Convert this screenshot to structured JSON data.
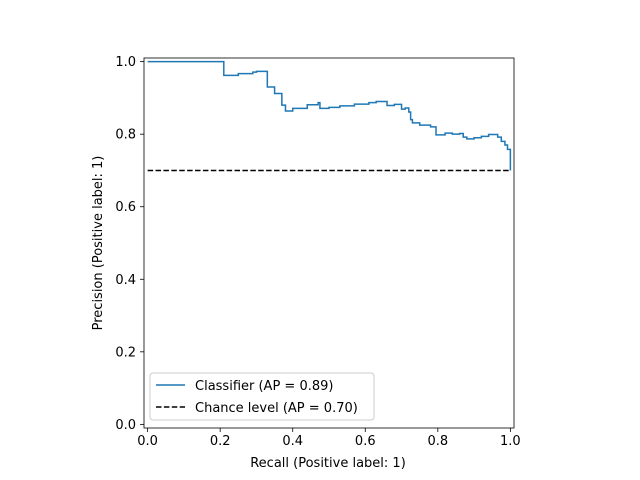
{
  "chart_data": {
    "type": "line",
    "title": "",
    "xlabel": "Recall (Positive label: 1)",
    "ylabel": "Precision (Positive label: 1)",
    "xlim": [
      -0.01,
      1.01
    ],
    "ylim": [
      -0.01,
      1.01
    ],
    "xticks": [
      "0.0",
      "0.2",
      "0.4",
      "0.6",
      "0.8",
      "1.0"
    ],
    "yticks": [
      "0.0",
      "0.2",
      "0.4",
      "0.6",
      "0.8",
      "1.0"
    ],
    "grid": false,
    "legend_position": "lower-left",
    "series": [
      {
        "name": "Classifier (AP = 0.89)",
        "color": "#1f77b4",
        "style": "step",
        "points": [
          [
            0.0,
            1.0
          ],
          [
            0.21,
            1.0
          ],
          [
            0.21,
            0.962
          ],
          [
            0.25,
            0.962
          ],
          [
            0.25,
            0.967
          ],
          [
            0.29,
            0.967
          ],
          [
            0.29,
            0.971
          ],
          [
            0.3,
            0.971
          ],
          [
            0.3,
            0.973
          ],
          [
            0.33,
            0.973
          ],
          [
            0.33,
            0.93
          ],
          [
            0.35,
            0.93
          ],
          [
            0.35,
            0.912
          ],
          [
            0.37,
            0.912
          ],
          [
            0.37,
            0.88
          ],
          [
            0.38,
            0.88
          ],
          [
            0.38,
            0.864
          ],
          [
            0.4,
            0.864
          ],
          [
            0.4,
            0.871
          ],
          [
            0.44,
            0.871
          ],
          [
            0.44,
            0.881
          ],
          [
            0.47,
            0.881
          ],
          [
            0.47,
            0.887
          ],
          [
            0.475,
            0.887
          ],
          [
            0.475,
            0.871
          ],
          [
            0.5,
            0.871
          ],
          [
            0.5,
            0.874
          ],
          [
            0.53,
            0.874
          ],
          [
            0.53,
            0.878
          ],
          [
            0.57,
            0.878
          ],
          [
            0.57,
            0.883
          ],
          [
            0.61,
            0.883
          ],
          [
            0.61,
            0.887
          ],
          [
            0.63,
            0.887
          ],
          [
            0.63,
            0.89
          ],
          [
            0.66,
            0.89
          ],
          [
            0.66,
            0.879
          ],
          [
            0.68,
            0.879
          ],
          [
            0.68,
            0.882
          ],
          [
            0.7,
            0.882
          ],
          [
            0.7,
            0.869
          ],
          [
            0.71,
            0.869
          ],
          [
            0.71,
            0.872
          ],
          [
            0.72,
            0.872
          ],
          [
            0.72,
            0.861
          ],
          [
            0.725,
            0.861
          ],
          [
            0.725,
            0.84
          ],
          [
            0.73,
            0.84
          ],
          [
            0.73,
            0.831
          ],
          [
            0.75,
            0.831
          ],
          [
            0.75,
            0.825
          ],
          [
            0.78,
            0.825
          ],
          [
            0.78,
            0.82
          ],
          [
            0.795,
            0.82
          ],
          [
            0.795,
            0.798
          ],
          [
            0.82,
            0.798
          ],
          [
            0.82,
            0.803
          ],
          [
            0.84,
            0.803
          ],
          [
            0.84,
            0.8
          ],
          [
            0.86,
            0.8
          ],
          [
            0.86,
            0.802
          ],
          [
            0.87,
            0.802
          ],
          [
            0.87,
            0.792
          ],
          [
            0.88,
            0.792
          ],
          [
            0.88,
            0.787
          ],
          [
            0.9,
            0.787
          ],
          [
            0.9,
            0.79
          ],
          [
            0.92,
            0.79
          ],
          [
            0.92,
            0.794
          ],
          [
            0.94,
            0.794
          ],
          [
            0.94,
            0.799
          ],
          [
            0.965,
            0.799
          ],
          [
            0.965,
            0.792
          ],
          [
            0.975,
            0.792
          ],
          [
            0.975,
            0.78
          ],
          [
            0.985,
            0.78
          ],
          [
            0.985,
            0.77
          ],
          [
            0.992,
            0.77
          ],
          [
            0.992,
            0.758
          ],
          [
            1.0,
            0.758
          ],
          [
            1.0,
            0.7
          ]
        ]
      },
      {
        "name": "Chance level (AP = 0.70)",
        "color": "#000000",
        "style": "dashed",
        "points": [
          [
            0.0,
            0.7
          ],
          [
            1.0,
            0.7
          ]
        ]
      }
    ]
  }
}
